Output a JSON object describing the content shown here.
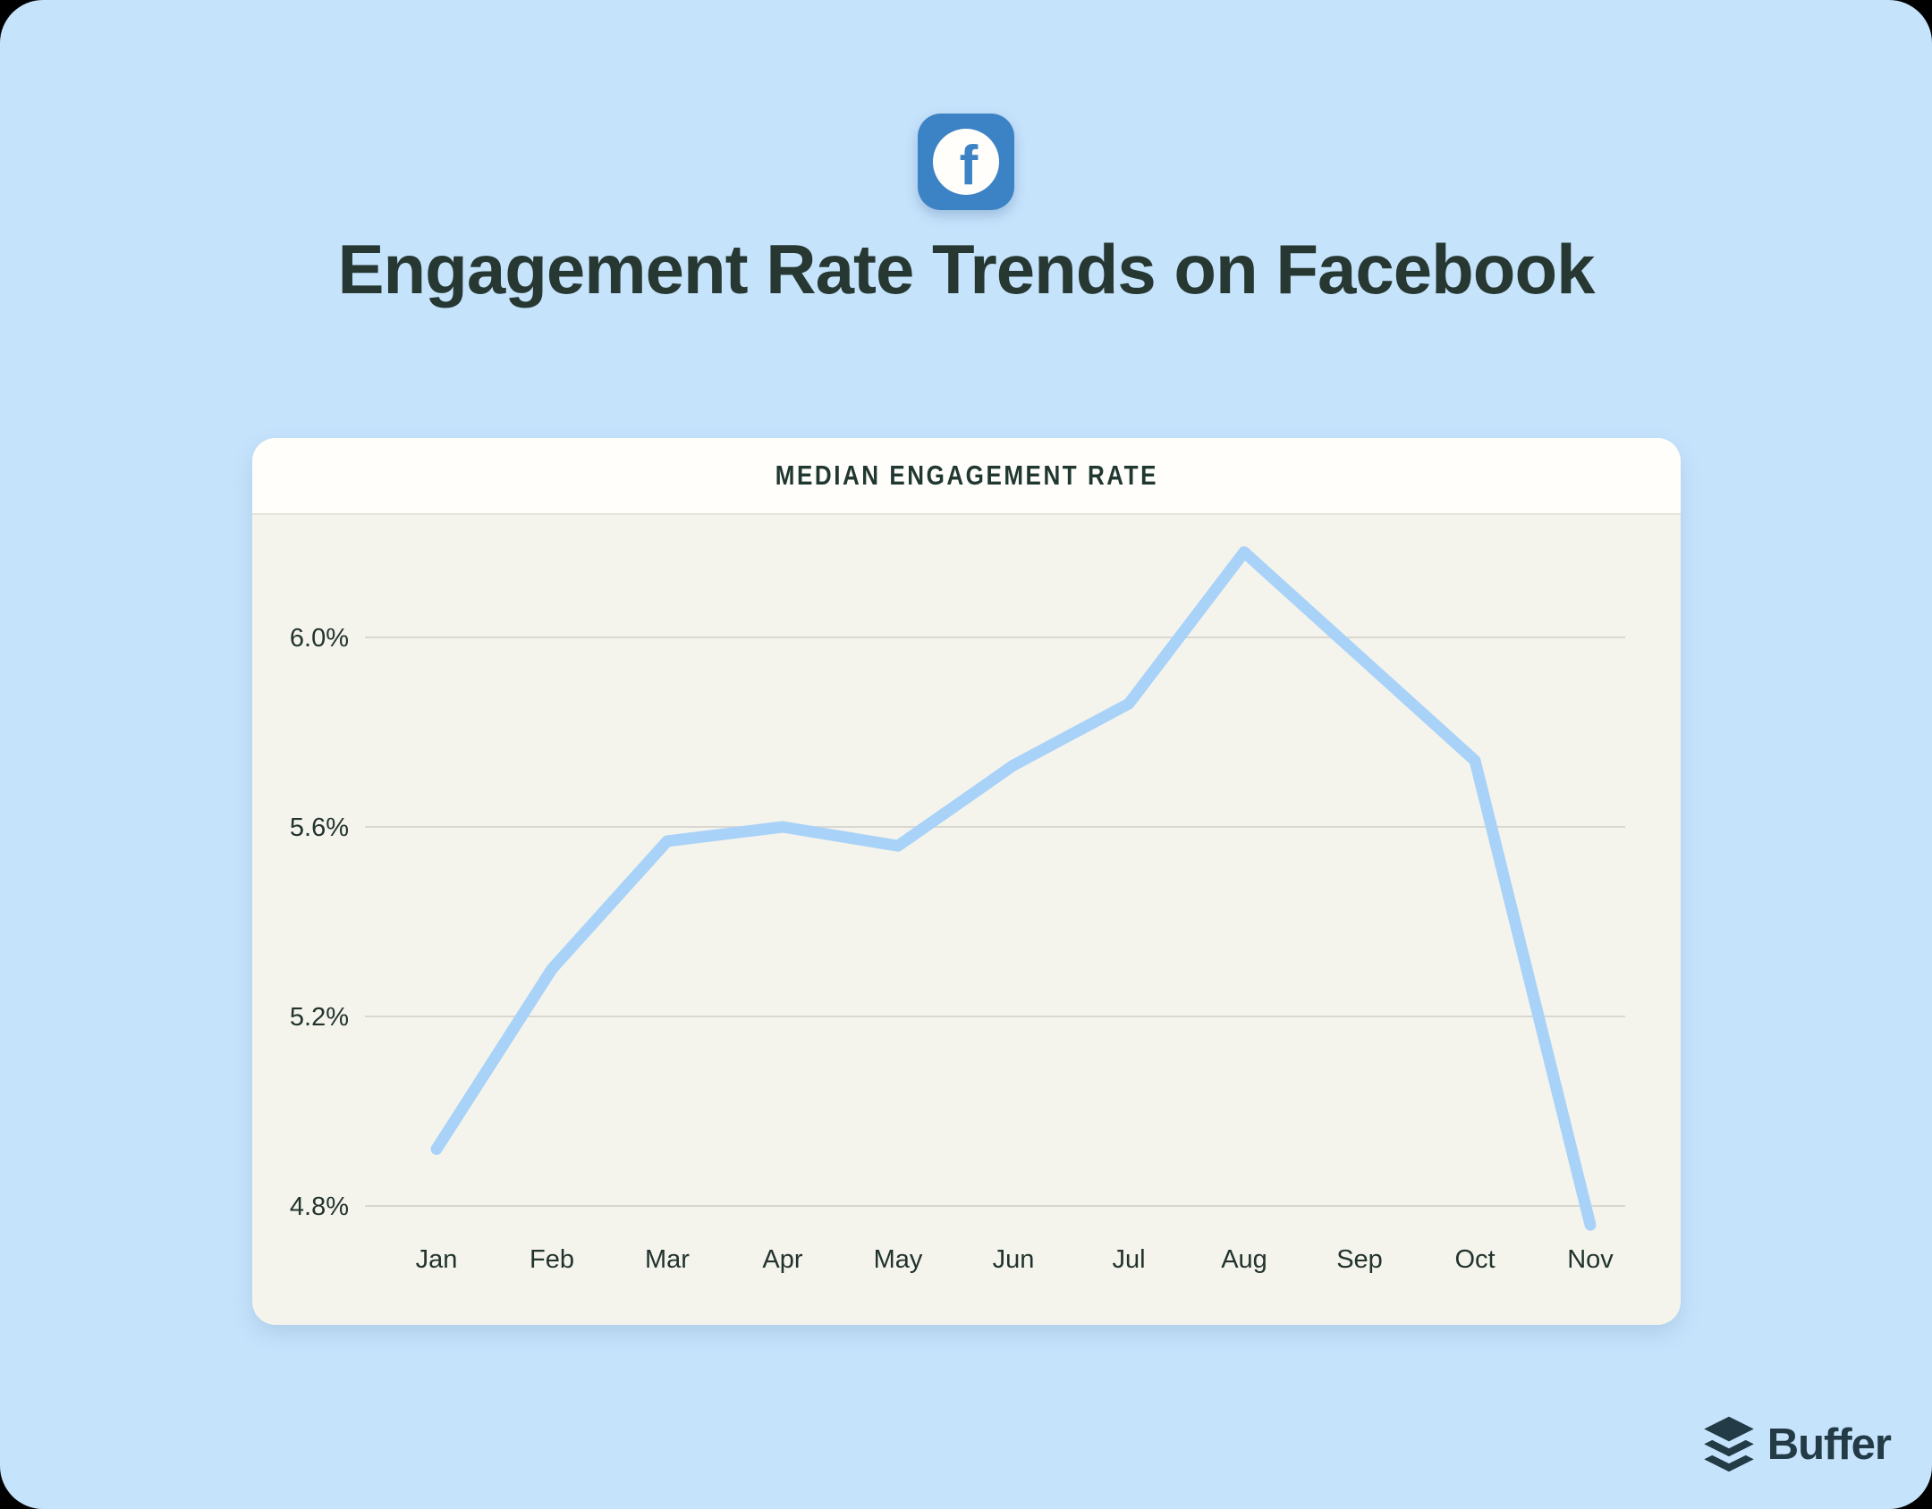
{
  "page": {
    "background_color": "#c6e3fc",
    "outer_color": "#000000"
  },
  "header": {
    "platform_icon": "facebook-icon",
    "facebook_glyph": "f",
    "facebook_blue": "#3c83c5",
    "title": "Engagement Rate Trends on Facebook",
    "title_color": "#263831"
  },
  "chart_data": {
    "type": "line",
    "title": "MEDIAN ENGAGEMENT RATE",
    "categories": [
      "Jan",
      "Feb",
      "Mar",
      "Apr",
      "May",
      "Jun",
      "Jul",
      "Aug",
      "Sep",
      "Oct",
      "Nov"
    ],
    "values": [
      4.92,
      5.3,
      5.57,
      5.6,
      5.56,
      5.73,
      5.86,
      6.18,
      5.96,
      5.74,
      4.76
    ],
    "unit": "%",
    "yticks": [
      {
        "label": "6.0%",
        "value": 6.0
      },
      {
        "label": "5.6%",
        "value": 5.6
      },
      {
        "label": "5.2%",
        "value": 5.2
      },
      {
        "label": "4.8%",
        "value": 4.8
      }
    ],
    "ylim": [
      4.68,
      6.28
    ],
    "grid": true,
    "legend": false,
    "line_color": "#a9d2f8",
    "gridline_color": "#d9d8d0",
    "label_color": "#22332d",
    "card_header_background": "#fffefa",
    "plot_background": "#f4f4ed"
  },
  "footer": {
    "brand": "Buffer",
    "brand_icon": "buffer-layers-icon",
    "brand_color": "#233b46"
  }
}
